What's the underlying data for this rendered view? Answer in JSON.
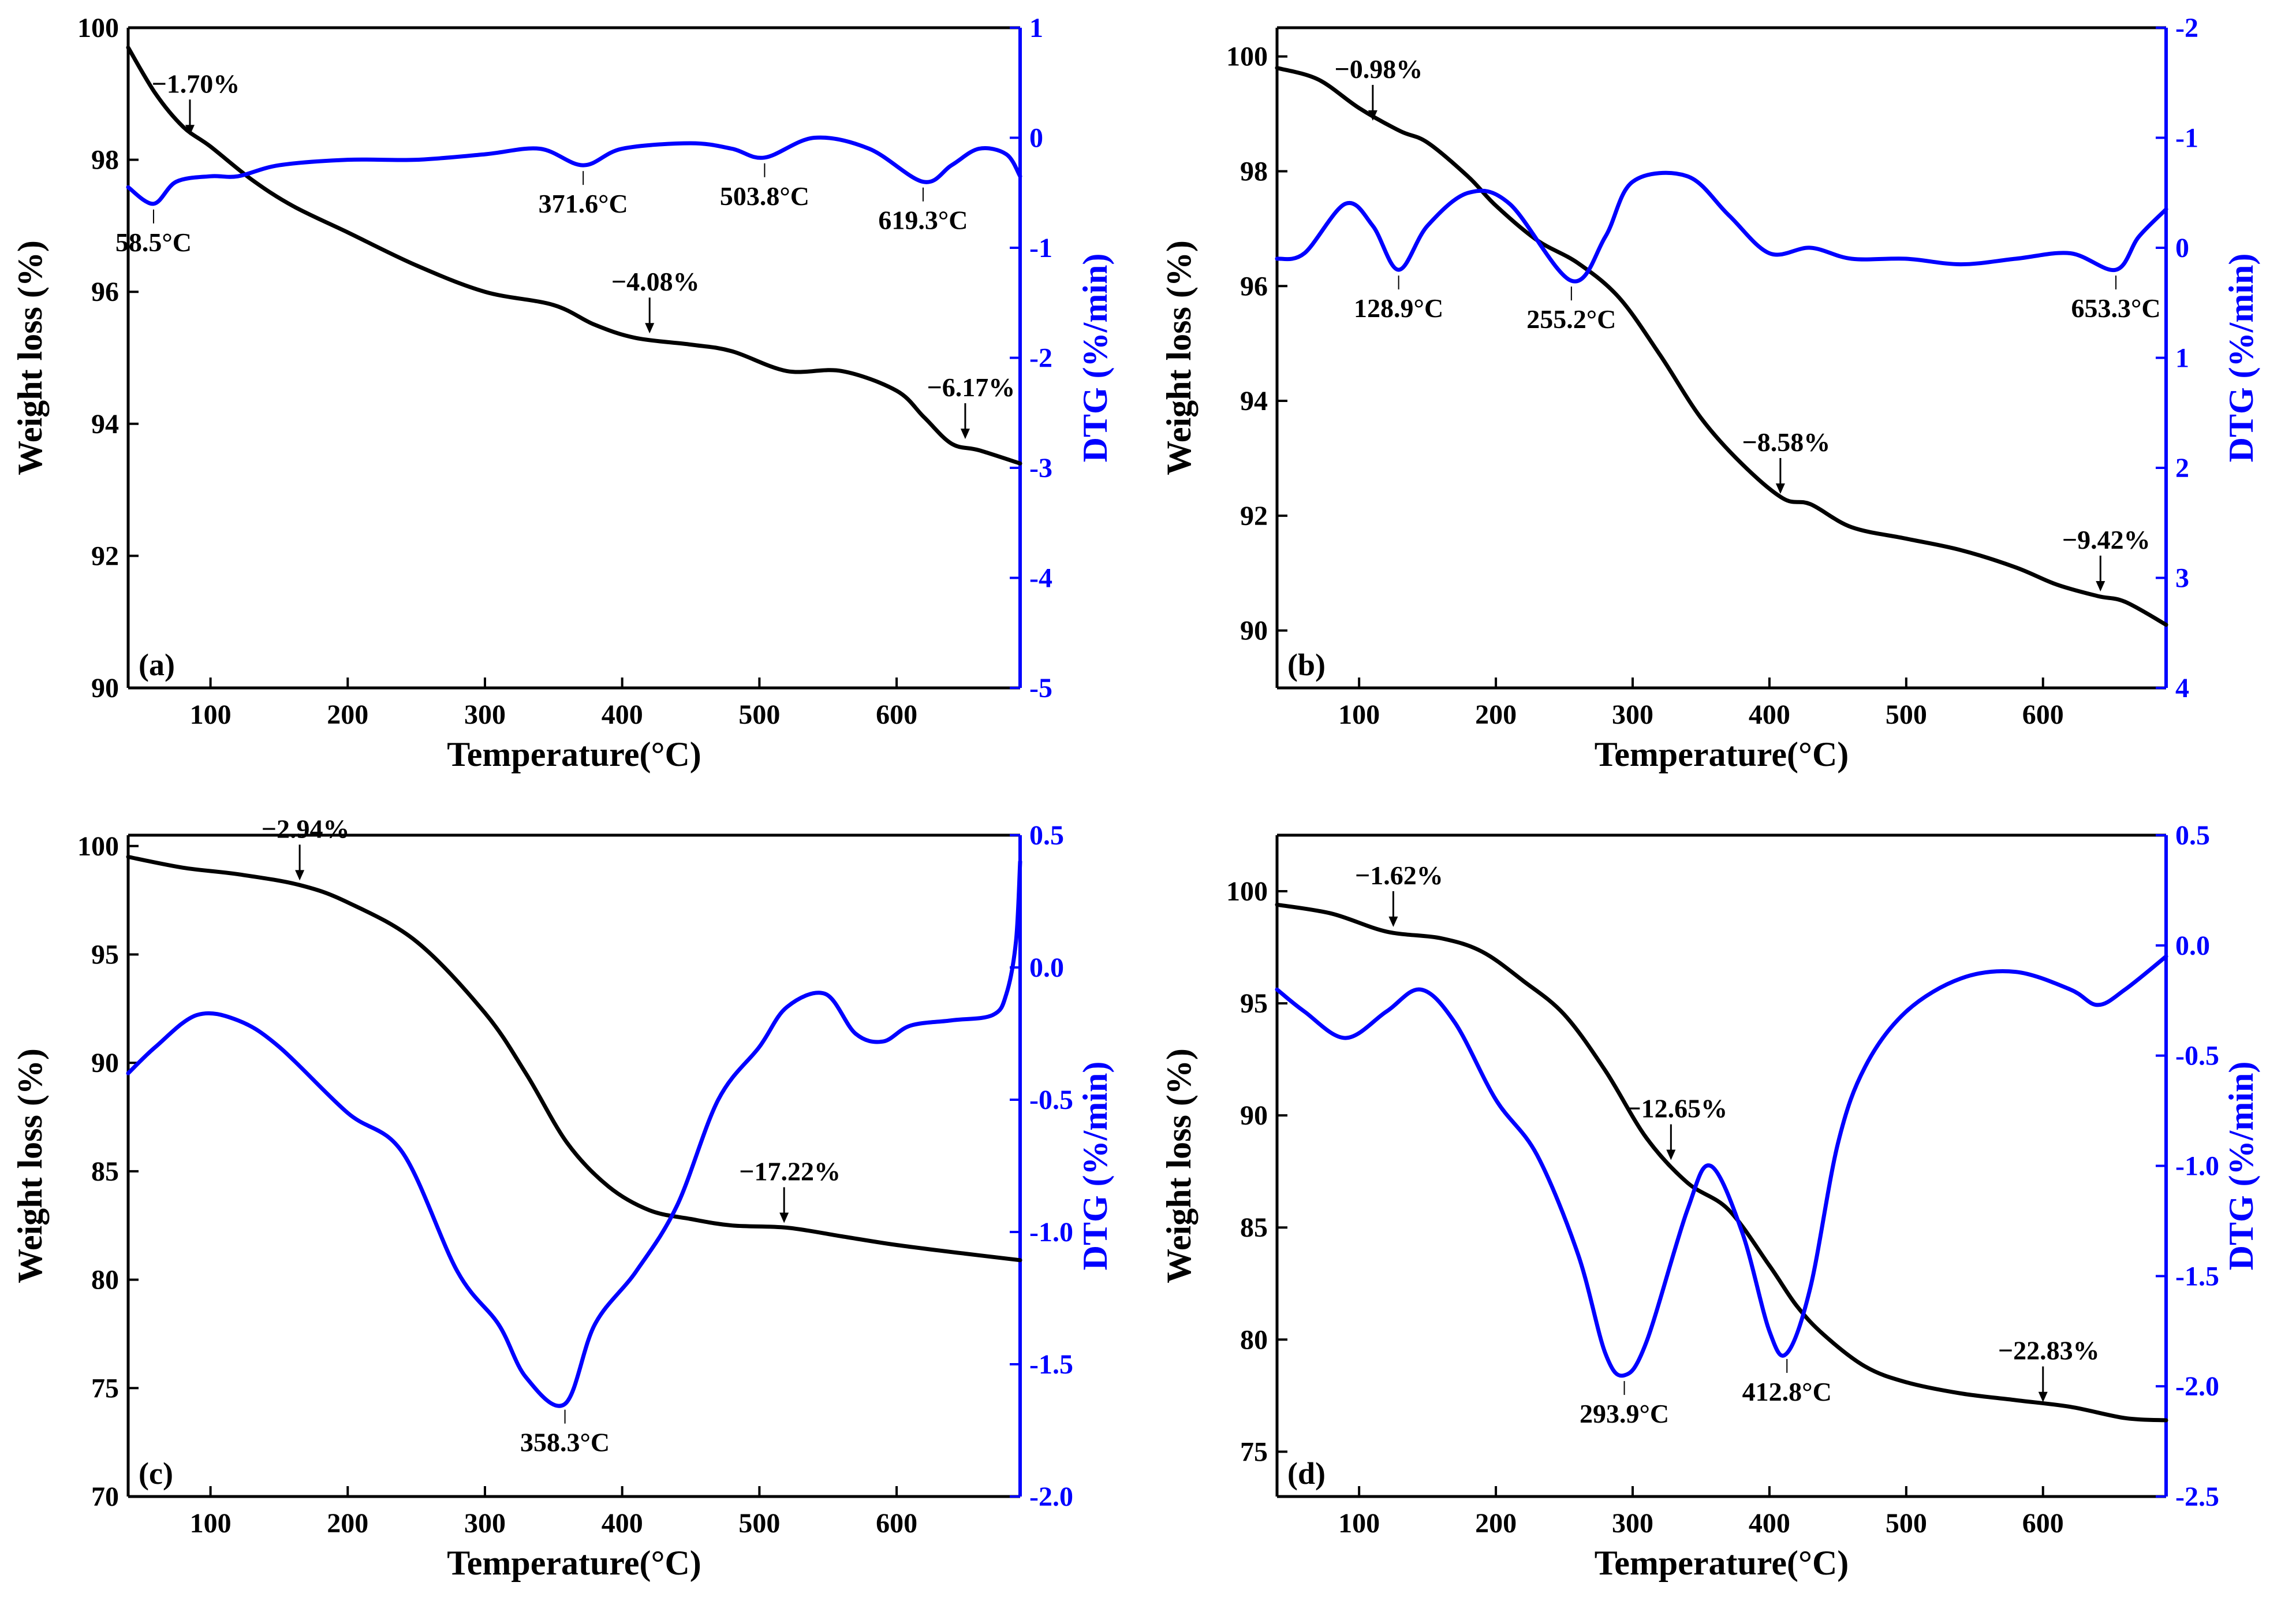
{
  "figure": {
    "colors": {
      "weight": "#000000",
      "dtg": "#0000ff",
      "axis": "#000000"
    }
  },
  "chart_data": [
    {
      "panel": "(a)",
      "type": "line",
      "xlabel": "Temperature(°C)",
      "ylabel": "Weight loss (%)",
      "ylabel_right": "DTG (%/min)",
      "xlim": [
        40,
        690
      ],
      "ylim": [
        90,
        100
      ],
      "ylim_right": [
        -5,
        1
      ],
      "right_inverted": false,
      "xticks": [
        100,
        200,
        300,
        400,
        500,
        600
      ],
      "yticks": [
        90,
        92,
        94,
        96,
        98,
        100
      ],
      "yticks_right": [
        -5,
        -4,
        -3,
        -2,
        -1,
        0,
        1
      ],
      "series": [
        {
          "name": "Weight loss",
          "axis": "left",
          "color": "#000000",
          "x": [
            40,
            60,
            80,
            100,
            130,
            160,
            200,
            250,
            300,
            350,
            380,
            410,
            450,
            480,
            520,
            560,
            600,
            620,
            640,
            660,
            690
          ],
          "values": [
            99.7,
            99.0,
            98.5,
            98.2,
            97.7,
            97.3,
            96.9,
            96.4,
            96.0,
            95.8,
            95.5,
            95.3,
            95.2,
            95.1,
            94.8,
            94.8,
            94.5,
            94.1,
            93.7,
            93.6,
            93.4
          ]
        },
        {
          "name": "DTG",
          "axis": "right",
          "color": "#0000ff",
          "x": [
            40,
            58.5,
            75,
            100,
            120,
            150,
            200,
            250,
            300,
            340,
            371.6,
            400,
            450,
            480,
            503.8,
            540,
            580,
            619.3,
            640,
            660,
            680,
            690
          ],
          "values": [
            -0.45,
            -0.6,
            -0.4,
            -0.35,
            -0.35,
            -0.25,
            -0.2,
            -0.2,
            -0.15,
            -0.1,
            -0.25,
            -0.1,
            -0.05,
            -0.1,
            -0.18,
            0.0,
            -0.1,
            -0.4,
            -0.25,
            -0.1,
            -0.15,
            -0.35
          ]
        }
      ],
      "annotations": [
        {
          "text": "−1.70%",
          "x": 85,
          "y": 98.3,
          "axis": "left",
          "arrow": true
        },
        {
          "text": "−4.08%",
          "x": 420,
          "y": 95.3,
          "axis": "left",
          "arrow": true
        },
        {
          "text": "−6.17%",
          "x": 650,
          "y": 93.7,
          "axis": "left",
          "arrow": true
        },
        {
          "text": "58.5°C",
          "x": 58.5,
          "y": -0.6,
          "axis": "right"
        },
        {
          "text": "371.6°C",
          "x": 371.6,
          "y": -0.25,
          "axis": "right"
        },
        {
          "text": "503.8°C",
          "x": 503.8,
          "y": -0.18,
          "axis": "right"
        },
        {
          "text": "619.3°C",
          "x": 619.3,
          "y": -0.4,
          "axis": "right"
        }
      ]
    },
    {
      "panel": "(b)",
      "type": "line",
      "xlabel": "Temperature(°C)",
      "ylabel": "Weight loss (%)",
      "ylabel_right": "DTG (%/min)",
      "xlim": [
        40,
        690
      ],
      "ylim": [
        89,
        100.5
      ],
      "ylim_right": [
        4,
        -2
      ],
      "right_inverted": true,
      "xticks": [
        100,
        200,
        300,
        400,
        500,
        600
      ],
      "yticks": [
        90,
        92,
        94,
        96,
        98,
        100
      ],
      "yticks_right": [
        4,
        3,
        2,
        1,
        0,
        -1,
        -2
      ],
      "series": [
        {
          "name": "Weight loss",
          "axis": "left",
          "color": "#000000",
          "x": [
            40,
            70,
            100,
            130,
            150,
            180,
            200,
            230,
            260,
            290,
            320,
            350,
            380,
            410,
            430,
            460,
            500,
            540,
            580,
            610,
            640,
            660,
            690
          ],
          "values": [
            99.8,
            99.6,
            99.1,
            98.7,
            98.5,
            97.9,
            97.4,
            96.8,
            96.4,
            95.8,
            94.8,
            93.7,
            92.9,
            92.3,
            92.2,
            91.8,
            91.6,
            91.4,
            91.1,
            90.8,
            90.6,
            90.5,
            90.1
          ]
        },
        {
          "name": "DTG",
          "axis": "right",
          "color": "#0000ff",
          "x": [
            40,
            60,
            90,
            110,
            128.9,
            150,
            180,
            210,
            255.2,
            280,
            300,
            340,
            370,
            400,
            430,
            460,
            500,
            540,
            580,
            620,
            653.3,
            670,
            690
          ],
          "values": [
            0.1,
            0.05,
            -0.4,
            -0.2,
            0.2,
            -0.2,
            -0.5,
            -0.4,
            0.3,
            -0.1,
            -0.6,
            -0.65,
            -0.3,
            0.05,
            0.0,
            0.1,
            0.1,
            0.15,
            0.1,
            0.05,
            0.2,
            -0.1,
            -0.35
          ]
        }
      ],
      "annotations": [
        {
          "text": "−0.98%",
          "x": 110,
          "y": 98.8,
          "axis": "left",
          "arrow": true
        },
        {
          "text": "−8.58%",
          "x": 408,
          "y": 92.3,
          "axis": "left",
          "arrow": true
        },
        {
          "text": "−9.42%",
          "x": 642,
          "y": 90.6,
          "axis": "left",
          "arrow": true
        },
        {
          "text": "128.9°C",
          "x": 128.9,
          "y": 0.2,
          "axis": "right"
        },
        {
          "text": "255.2°C",
          "x": 255.2,
          "y": 0.3,
          "axis": "right"
        },
        {
          "text": "653.3°C",
          "x": 653.3,
          "y": 0.2,
          "axis": "right"
        }
      ]
    },
    {
      "panel": "(c)",
      "type": "line",
      "xlabel": "Temperature(°C)",
      "ylabel": "Weight loss (%)",
      "ylabel_right": "DTG (%/min)",
      "xlim": [
        40,
        690
      ],
      "ylim": [
        70,
        100.5
      ],
      "ylim_right": [
        -2.0,
        0.5
      ],
      "right_inverted": false,
      "xticks": [
        100,
        200,
        300,
        400,
        500,
        600
      ],
      "yticks": [
        70,
        75,
        80,
        85,
        90,
        95,
        100
      ],
      "yticks_right": [
        -2.0,
        -1.5,
        -1.0,
        -0.5,
        0.0,
        0.5
      ],
      "series": [
        {
          "name": "Weight loss",
          "axis": "left",
          "color": "#000000",
          "x": [
            40,
            80,
            120,
            165,
            200,
            250,
            300,
            330,
            360,
            390,
            420,
            450,
            480,
            520,
            560,
            600,
            650,
            690
          ],
          "values": [
            99.5,
            99.0,
            98.7,
            98.2,
            97.4,
            95.6,
            92.3,
            89.5,
            86.3,
            84.3,
            83.2,
            82.8,
            82.5,
            82.4,
            82.0,
            81.6,
            81.2,
            80.9
          ]
        },
        {
          "name": "DTG",
          "axis": "right",
          "color": "#0000ff",
          "x": [
            40,
            60,
            90,
            120,
            150,
            200,
            240,
            280,
            310,
            330,
            358.3,
            380,
            410,
            440,
            470,
            500,
            520,
            548,
            570,
            590,
            610,
            640,
            670,
            680,
            687,
            690
          ],
          "values": [
            -0.4,
            -0.3,
            -0.18,
            -0.2,
            -0.3,
            -0.55,
            -0.7,
            -1.15,
            -1.35,
            -1.55,
            -1.65,
            -1.35,
            -1.15,
            -0.9,
            -0.5,
            -0.3,
            -0.15,
            -0.1,
            -0.25,
            -0.28,
            -0.22,
            -0.2,
            -0.18,
            -0.1,
            0.1,
            0.4
          ]
        }
      ],
      "annotations": [
        {
          "text": "−2.94%",
          "x": 165,
          "y": 98.2,
          "axis": "left",
          "arrow": true
        },
        {
          "text": "−17.22%",
          "x": 518,
          "y": 82.4,
          "axis": "left",
          "arrow": true
        },
        {
          "text": "358.3°C",
          "x": 358.3,
          "y": -1.65,
          "axis": "right"
        }
      ]
    },
    {
      "panel": "(d)",
      "type": "line",
      "xlabel": "Temperature(°C)",
      "ylabel": "Weight loss (%)",
      "ylabel_right": "DTG (%/min)",
      "xlim": [
        40,
        690
      ],
      "ylim": [
        73,
        102.5
      ],
      "ylim_right": [
        -2.5,
        0.5
      ],
      "right_inverted": false,
      "xticks": [
        100,
        200,
        300,
        400,
        500,
        600
      ],
      "yticks": [
        75,
        80,
        85,
        90,
        95,
        100
      ],
      "yticks_right": [
        -2.5,
        -2.0,
        -1.5,
        -1.0,
        -0.5,
        0.0,
        0.5
      ],
      "series": [
        {
          "name": "Weight loss",
          "axis": "left",
          "color": "#000000",
          "x": [
            40,
            80,
            120,
            160,
            190,
            220,
            250,
            280,
            310,
            340,
            370,
            400,
            420,
            440,
            470,
            500,
            540,
            580,
            620,
            660,
            690
          ],
          "values": [
            99.4,
            99.0,
            98.2,
            97.9,
            97.3,
            96.0,
            94.5,
            92.0,
            89.0,
            87.0,
            85.8,
            83.3,
            81.5,
            80.2,
            78.8,
            78.1,
            77.6,
            77.3,
            77.0,
            76.5,
            76.4
          ]
        },
        {
          "name": "DTG",
          "axis": "right",
          "color": "#0000ff",
          "x": [
            40,
            60,
            90,
            120,
            145,
            170,
            200,
            230,
            260,
            280,
            293.9,
            310,
            340,
            357,
            380,
            400,
            412.8,
            430,
            450,
            470,
            500,
            540,
            580,
            620,
            640,
            660,
            690
          ],
          "values": [
            -0.2,
            -0.3,
            -0.42,
            -0.3,
            -0.2,
            -0.35,
            -0.7,
            -0.95,
            -1.4,
            -1.85,
            -1.95,
            -1.8,
            -1.2,
            -1.0,
            -1.3,
            -1.75,
            -1.85,
            -1.55,
            -0.9,
            -0.55,
            -0.3,
            -0.15,
            -0.12,
            -0.2,
            -0.27,
            -0.2,
            -0.05
          ]
        }
      ],
      "annotations": [
        {
          "text": "−1.62%",
          "x": 125,
          "y": 98.2,
          "axis": "left",
          "arrow": true
        },
        {
          "text": "−12.65%",
          "x": 328,
          "y": 87.8,
          "axis": "left",
          "arrow": true
        },
        {
          "text": "−22.83%",
          "x": 600,
          "y": 77.0,
          "axis": "left",
          "arrow": true
        },
        {
          "text": "293.9°C",
          "x": 293.9,
          "y": -1.95,
          "axis": "right"
        },
        {
          "text": "412.8°C",
          "x": 412.8,
          "y": -1.85,
          "axis": "right"
        }
      ]
    }
  ]
}
